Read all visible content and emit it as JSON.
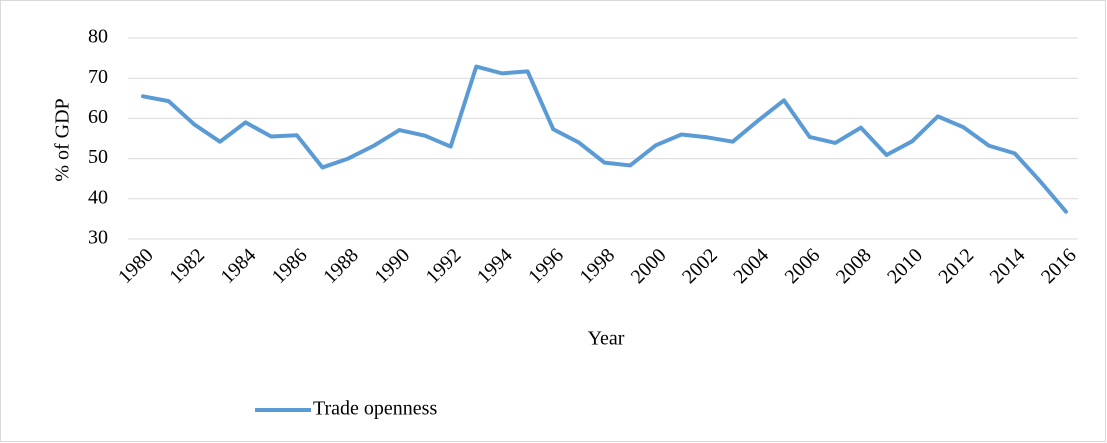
{
  "chart_data": {
    "type": "line",
    "x": [
      1980,
      1981,
      1982,
      1983,
      1984,
      1985,
      1986,
      1987,
      1988,
      1989,
      1990,
      1991,
      1992,
      1993,
      1994,
      1995,
      1996,
      1997,
      1998,
      1999,
      2000,
      2001,
      2002,
      2003,
      2004,
      2005,
      2006,
      2007,
      2008,
      2009,
      2010,
      2011,
      2012,
      2013,
      2014,
      2015,
      2016
    ],
    "series": [
      {
        "name": "Trade openness",
        "color": "#5b9bd5",
        "values": [
          65.5,
          64.3,
          58.5,
          54.2,
          59,
          55.5,
          55.8,
          47.8,
          50,
          53.2,
          57.1,
          55.7,
          53,
          72.9,
          71.2,
          71.7,
          57.3,
          54,
          49,
          48.3,
          53.3,
          56,
          55.3,
          54.2,
          59.5,
          64.5,
          55.4,
          53.9,
          57.7,
          50.9,
          54.3,
          60.5,
          57.8,
          53.2,
          51.3,
          44.3,
          36.8
        ]
      }
    ],
    "xlabel": "Year",
    "ylabel": "% of  GDP",
    "xlim": [
      1980,
      2016
    ],
    "xticks": [
      1980,
      1982,
      1984,
      1986,
      1988,
      1990,
      1992,
      1994,
      1996,
      1998,
      2000,
      2002,
      2004,
      2006,
      2008,
      2010,
      2012,
      2014,
      2016
    ],
    "ylim": [
      30,
      80
    ],
    "yticks": [
      30,
      40,
      50,
      60,
      70,
      80
    ],
    "grid": true,
    "legend": "bottom"
  }
}
